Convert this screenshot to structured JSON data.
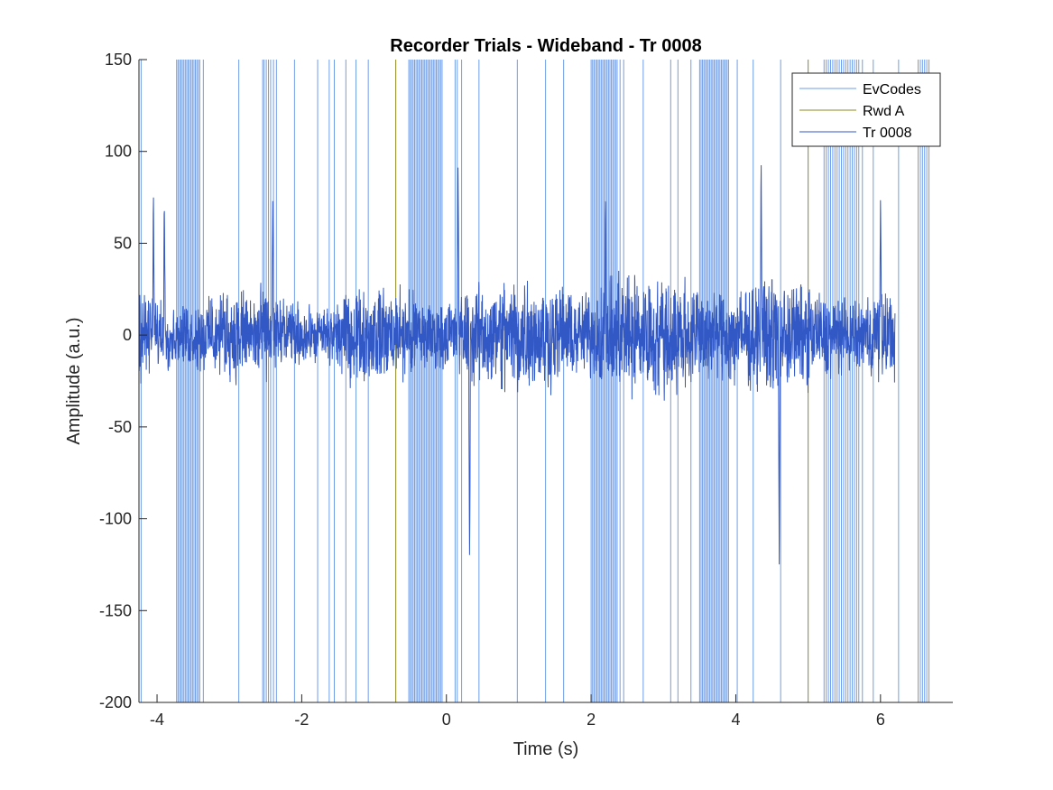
{
  "chart_data": {
    "type": "line",
    "title": "Recorder Trials - Wideband - Tr 0008",
    "xlabel": "Time (s)",
    "ylabel": "Amplitude (a.u.)",
    "xlim": [
      -4.25,
      7.0
    ],
    "ylim": [
      -200,
      150
    ],
    "xticks": [
      -4,
      -2,
      0,
      2,
      4,
      6
    ],
    "xtick_labels": [
      "-4",
      "-2",
      "0",
      "2",
      "4",
      "6"
    ],
    "yticks": [
      150,
      100,
      50,
      0,
      -50,
      -100,
      -150,
      -200
    ],
    "ytick_labels": [
      "150",
      "100",
      "50",
      "0",
      "-50",
      "-100",
      "-150",
      "-200"
    ],
    "grid": false,
    "legend_position": "top-right",
    "colors": {
      "evcodes": "#6f9ee8",
      "rwd": "#8c8a1f",
      "trace": "#3258c5",
      "axes": "#262626"
    },
    "series": [
      {
        "name": "EvCodes",
        "kind": "vertical-lines",
        "x": [
          -4.22,
          -3.73,
          -3.71,
          -3.69,
          -3.67,
          -3.65,
          -3.63,
          -3.61,
          -3.59,
          -3.57,
          -3.55,
          -3.53,
          -3.51,
          -3.49,
          -3.47,
          -3.45,
          -3.43,
          -3.41,
          -3.36,
          -2.87,
          -2.54,
          -2.52,
          -2.49,
          -2.46,
          -2.43,
          -2.39,
          -2.35,
          -2.1,
          -1.78,
          -1.62,
          -1.55,
          -1.39,
          -1.25,
          -1.08,
          -0.52,
          -0.5,
          -0.48,
          -0.46,
          -0.44,
          -0.42,
          -0.4,
          -0.38,
          -0.36,
          -0.34,
          -0.32,
          -0.3,
          -0.28,
          -0.26,
          -0.24,
          -0.22,
          -0.2,
          -0.18,
          -0.16,
          -0.14,
          -0.12,
          -0.1,
          -0.08,
          -0.06,
          0.12,
          0.15,
          0.21,
          0.45,
          0.98,
          1.37,
          1.62,
          2.0,
          2.02,
          2.04,
          2.06,
          2.08,
          2.1,
          2.12,
          2.14,
          2.16,
          2.18,
          2.2,
          2.22,
          2.24,
          2.26,
          2.28,
          2.3,
          2.32,
          2.34,
          2.36,
          2.4,
          2.45,
          2.72,
          3.1,
          3.2,
          3.38,
          3.5,
          3.52,
          3.54,
          3.56,
          3.58,
          3.6,
          3.62,
          3.64,
          3.66,
          3.68,
          3.7,
          3.72,
          3.74,
          3.76,
          3.78,
          3.8,
          3.82,
          3.84,
          3.86,
          3.88,
          3.9,
          4.02,
          4.24,
          4.62,
          5.22,
          5.25,
          5.28,
          5.31,
          5.34,
          5.37,
          5.4,
          5.43,
          5.46,
          5.49,
          5.52,
          5.55,
          5.58,
          5.61,
          5.64,
          5.67,
          5.7,
          5.75,
          5.9,
          6.25,
          6.52,
          6.55,
          6.58,
          6.61,
          6.64,
          6.67
        ]
      },
      {
        "name": "Rwd A",
        "kind": "vertical-lines",
        "x": [
          -0.7,
          5.0
        ]
      },
      {
        "name": "Tr 0008",
        "kind": "signal",
        "x_range": [
          -4.25,
          6.2
        ],
        "amplitude_typical": [
          -50,
          50
        ],
        "peaks": [
          {
            "x": -4.05,
            "y": 77
          },
          {
            "x": -3.9,
            "y": 75
          },
          {
            "x": -2.4,
            "y": 75
          },
          {
            "x": 0.32,
            "y": -122
          },
          {
            "x": 0.16,
            "y": 95
          },
          {
            "x": 2.2,
            "y": 80
          },
          {
            "x": 4.35,
            "y": 95
          },
          {
            "x": 4.6,
            "y": -126
          },
          {
            "x": 6.0,
            "y": 75
          }
        ]
      }
    ]
  }
}
